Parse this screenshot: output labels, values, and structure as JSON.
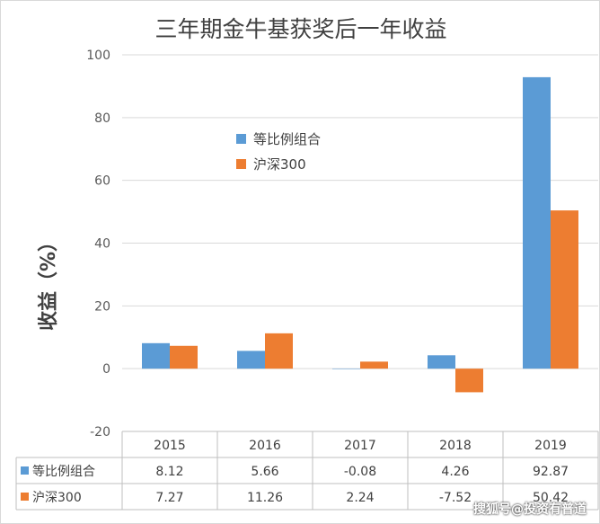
{
  "chart_data": {
    "type": "bar",
    "title": "三年期金牛基获奖后一年收益",
    "ylabel": "收益（%）",
    "xlabel": "",
    "categories": [
      "2015",
      "2016",
      "2017",
      "2018",
      "2019"
    ],
    "series": [
      {
        "name": "等比例组合",
        "values": [
          8.12,
          5.66,
          -0.08,
          4.26,
          92.87
        ],
        "labels": [
          "8.12",
          "5.66",
          "-0.08",
          "4.26",
          "92.87"
        ],
        "color": "#5b9bd5"
      },
      {
        "name": "沪深300",
        "values": [
          7.27,
          11.26,
          2.24,
          -7.52,
          50.42
        ],
        "labels": [
          "7.27",
          "11.26",
          "2.24",
          "-7.52",
          "50.42"
        ],
        "color": "#ed7d31"
      }
    ],
    "ylim": [
      -20,
      100
    ],
    "yticks": [
      -20,
      0,
      20,
      40,
      60,
      80,
      100
    ],
    "grid": true,
    "legend_position": "top-center",
    "data_table": true
  },
  "watermark": "搜狐号@投资有普道"
}
